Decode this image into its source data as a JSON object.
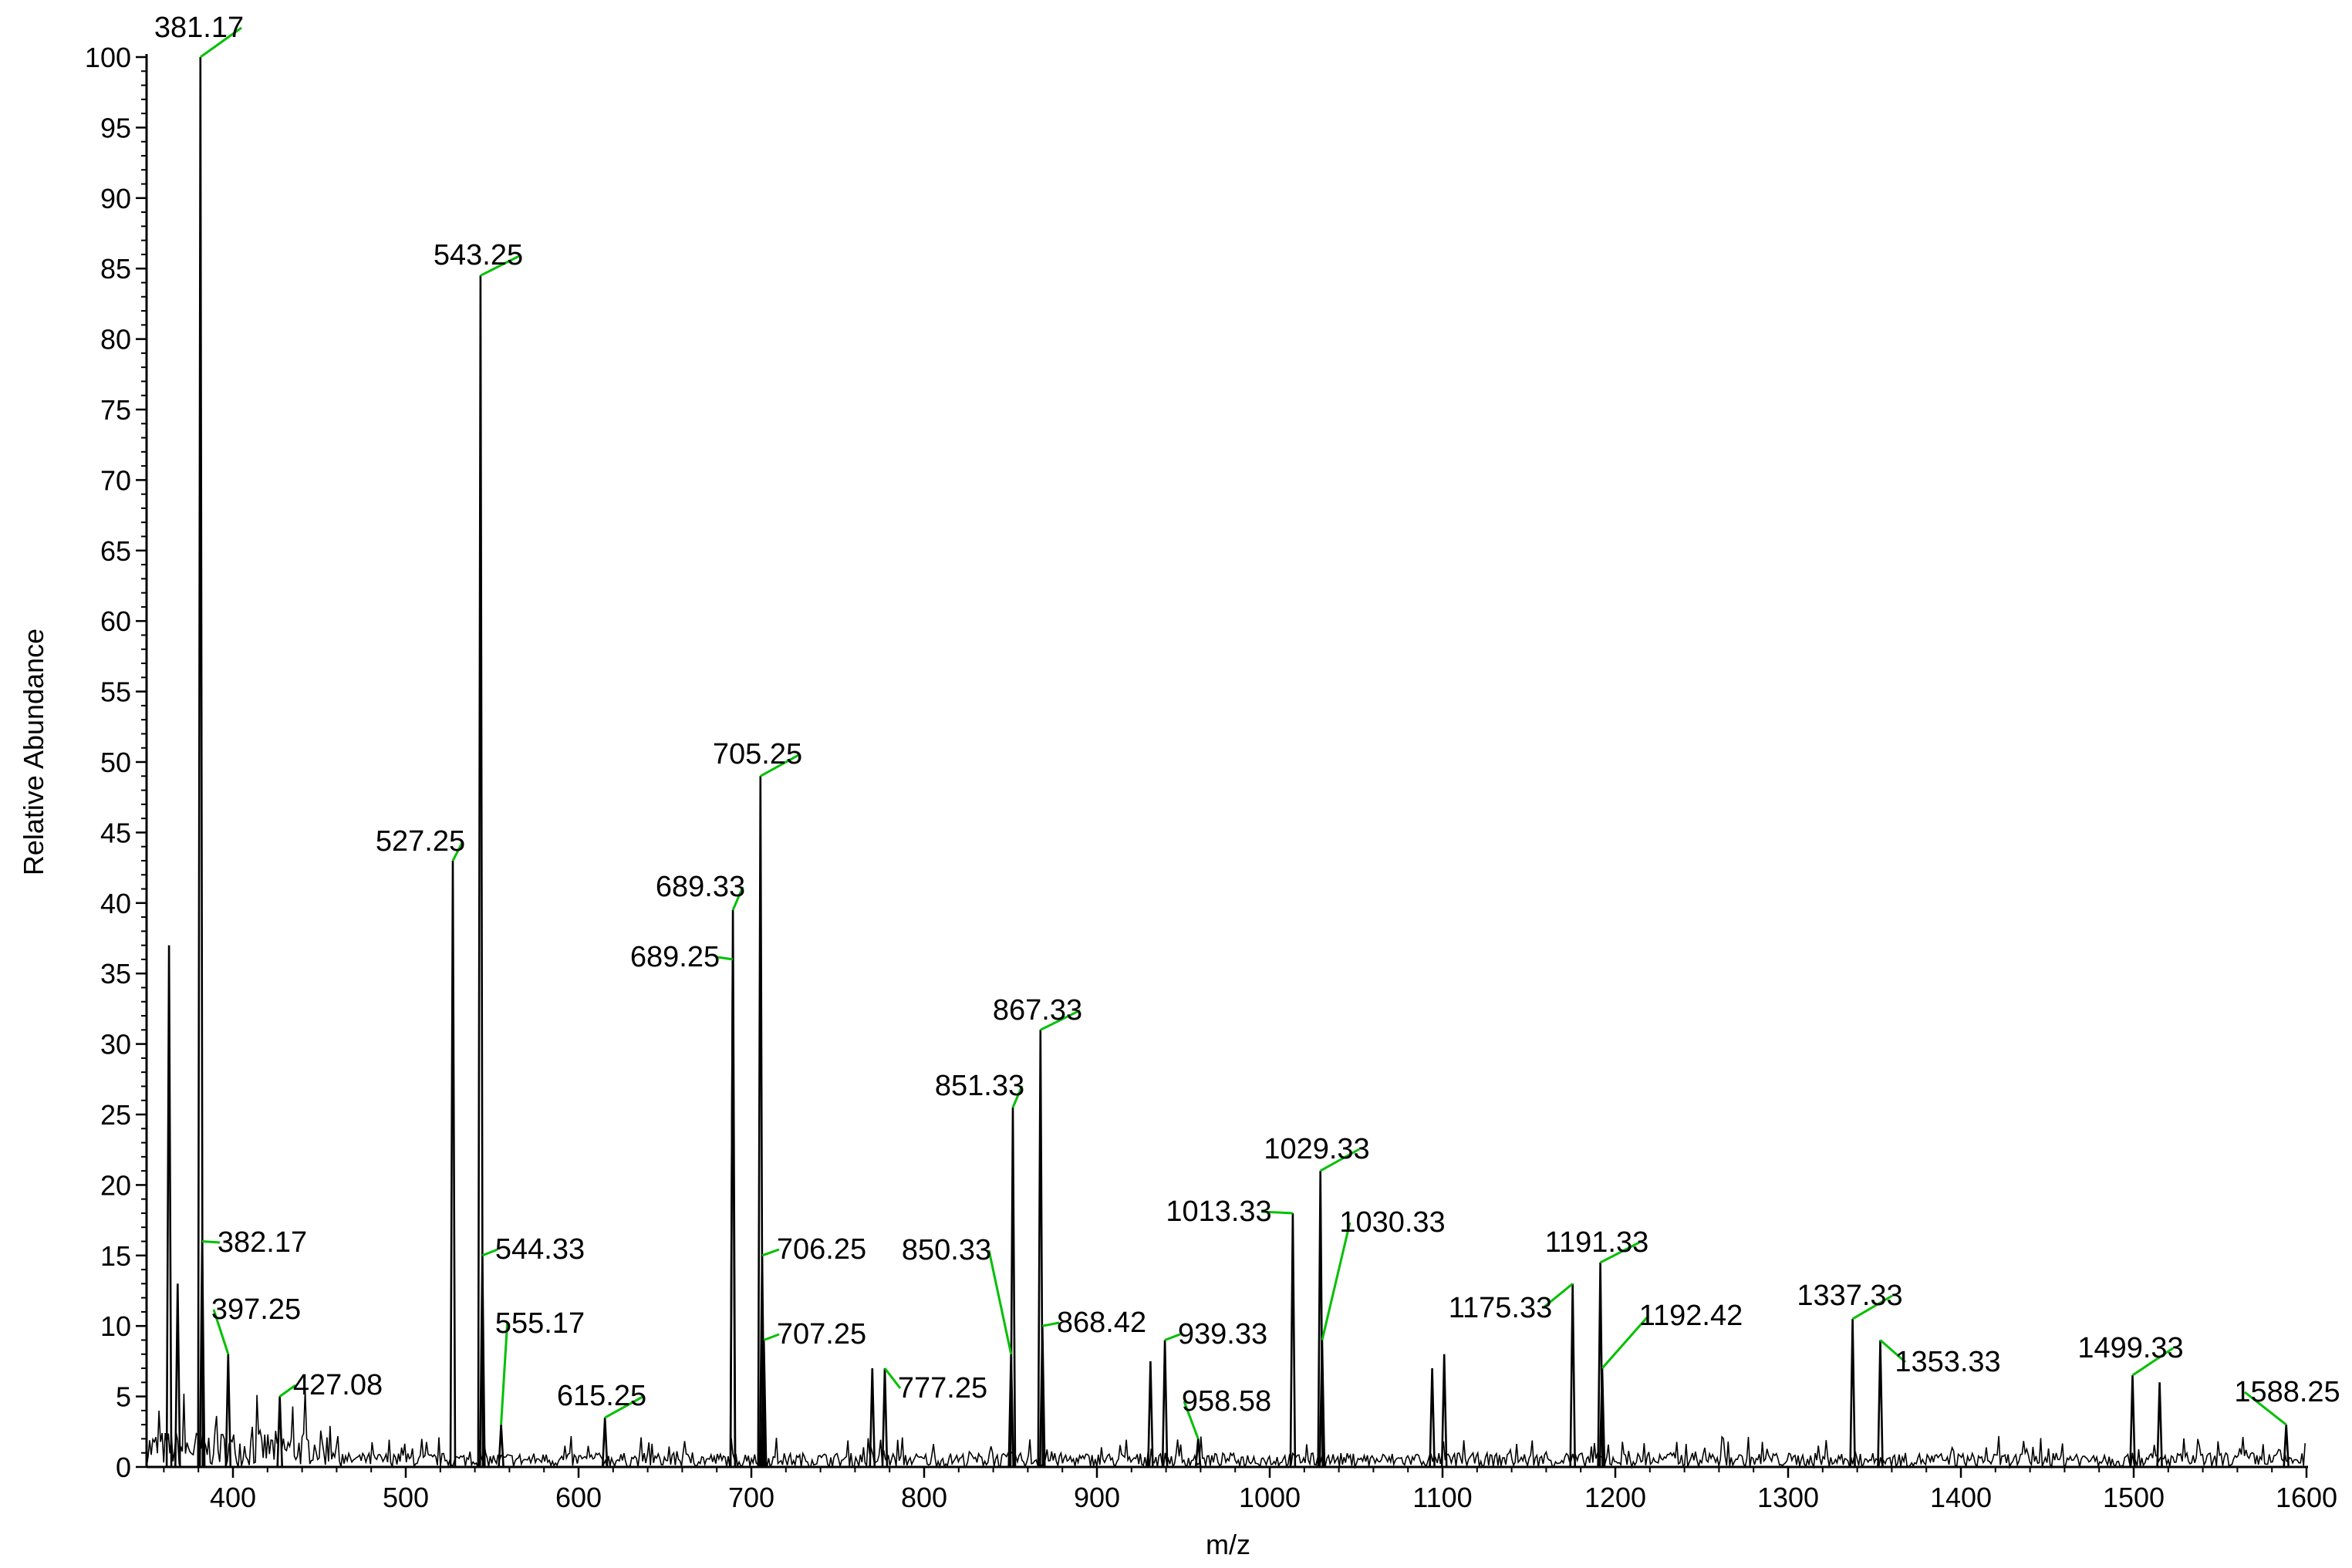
{
  "chart_data": {
    "type": "line",
    "title": "",
    "xlabel": "m/z",
    "ylabel": "Relative Abundance",
    "xlim": [
      350,
      1600
    ],
    "ylim": [
      0,
      100
    ],
    "grid": false,
    "legend": "none",
    "x_ticks": [
      "400",
      "500",
      "600",
      "700",
      "800",
      "900",
      "1000",
      "1100",
      "1200",
      "1300",
      "1400",
      "1500",
      "1600"
    ],
    "y_ticks": [
      "0",
      "5",
      "10",
      "15",
      "20",
      "25",
      "30",
      "35",
      "40",
      "45",
      "50",
      "55",
      "60",
      "65",
      "70",
      "75",
      "80",
      "85",
      "90",
      "95",
      "100"
    ],
    "peaks": [
      {
        "mz": 363,
        "intensity": 37
      },
      {
        "mz": 368,
        "intensity": 13
      },
      {
        "mz": 381.17,
        "intensity": 100,
        "label": "381.17"
      },
      {
        "mz": 382.17,
        "intensity": 16,
        "label": "382.17"
      },
      {
        "mz": 397.25,
        "intensity": 8,
        "label": "397.25"
      },
      {
        "mz": 427.08,
        "intensity": 5,
        "label": "427.08"
      },
      {
        "mz": 527.25,
        "intensity": 43,
        "label": "527.25"
      },
      {
        "mz": 543.25,
        "intensity": 84.5,
        "label": "543.25"
      },
      {
        "mz": 544.33,
        "intensity": 15,
        "label": "544.33"
      },
      {
        "mz": 555.17,
        "intensity": 3,
        "label": "555.17"
      },
      {
        "mz": 615.25,
        "intensity": 3.5,
        "label": "615.25"
      },
      {
        "mz": 689.25,
        "intensity": 36,
        "label": "689.25"
      },
      {
        "mz": 689.33,
        "intensity": 39.5,
        "label": "689.33"
      },
      {
        "mz": 705.25,
        "intensity": 49,
        "label": "705.25"
      },
      {
        "mz": 706.25,
        "intensity": 15,
        "label": "706.25"
      },
      {
        "mz": 707.25,
        "intensity": 9,
        "label": "707.25"
      },
      {
        "mz": 770,
        "intensity": 7
      },
      {
        "mz": 777.25,
        "intensity": 7,
        "label": "777.25"
      },
      {
        "mz": 850.33,
        "intensity": 8,
        "label": "850.33"
      },
      {
        "mz": 851.33,
        "intensity": 25.5,
        "label": "851.33"
      },
      {
        "mz": 867.33,
        "intensity": 31,
        "label": "867.33"
      },
      {
        "mz": 868.42,
        "intensity": 10,
        "label": "868.42"
      },
      {
        "mz": 931,
        "intensity": 7.5
      },
      {
        "mz": 939.33,
        "intensity": 9,
        "label": "939.33"
      },
      {
        "mz": 958.58,
        "intensity": 2,
        "label": "958.58"
      },
      {
        "mz": 1013.33,
        "intensity": 18,
        "label": "1013.33"
      },
      {
        "mz": 1029.33,
        "intensity": 21,
        "label": "1029.33"
      },
      {
        "mz": 1030.33,
        "intensity": 9,
        "label": "1030.33"
      },
      {
        "mz": 1094,
        "intensity": 7
      },
      {
        "mz": 1101,
        "intensity": 8
      },
      {
        "mz": 1175.33,
        "intensity": 13,
        "label": "1175.33"
      },
      {
        "mz": 1191.33,
        "intensity": 14.5,
        "label": "1191.33"
      },
      {
        "mz": 1192.42,
        "intensity": 7,
        "label": "1192.42"
      },
      {
        "mz": 1337.33,
        "intensity": 10.5,
        "label": "1337.33"
      },
      {
        "mz": 1353.33,
        "intensity": 9,
        "label": "1353.33"
      },
      {
        "mz": 1499.33,
        "intensity": 6.5,
        "label": "1499.33"
      },
      {
        "mz": 1515,
        "intensity": 6
      },
      {
        "mz": 1588.25,
        "intensity": 3,
        "label": "1588.25"
      }
    ]
  },
  "colors": {
    "trace": "#000000",
    "axis": "#000000",
    "label_leader": "#00c000"
  }
}
